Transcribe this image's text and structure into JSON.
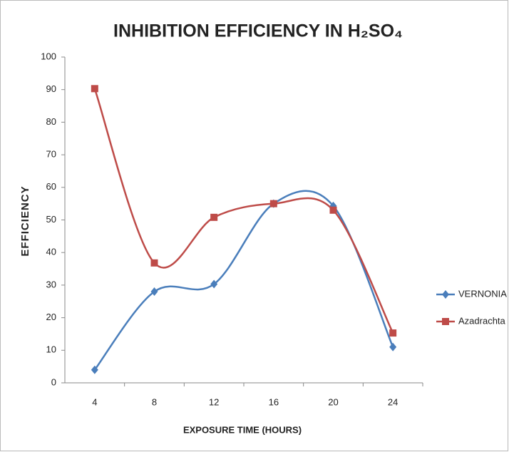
{
  "chart_data": {
    "type": "line",
    "title": "INHIBITION EFFICIENCY IN H₂SO₄",
    "x_label": "EXPOSURE TIME (HOURS)",
    "y_label": "EFFICIENCY",
    "categories": [
      "4",
      "8",
      "12",
      "16",
      "20",
      "24"
    ],
    "series": [
      {
        "name": "VERNONIA",
        "color": "#4a7ebb",
        "marker": "diamond",
        "values": [
          4,
          28,
          30.3,
          55,
          54.3,
          11
        ]
      },
      {
        "name": "Azadrachta",
        "color": "#be4b48",
        "marker": "square",
        "values": [
          90.3,
          36.8,
          50.8,
          55,
          53,
          15.3
        ]
      }
    ],
    "ylim": [
      0,
      100
    ],
    "yticks": [
      0,
      10,
      20,
      30,
      40,
      50,
      60,
      70,
      80,
      90,
      100
    ],
    "smooth": true,
    "legend": "right"
  }
}
